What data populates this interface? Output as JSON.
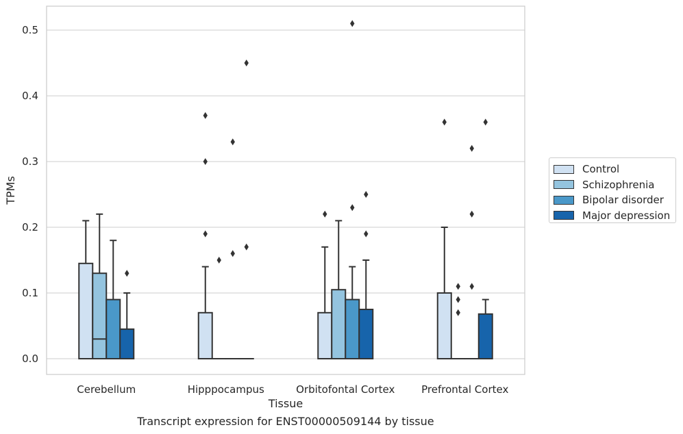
{
  "chart_data": {
    "type": "box",
    "caption": "Transcript expression for ENST00000509144 by tissue",
    "xlabel": "Tissue",
    "ylabel": "TPMs",
    "ylim": [
      -0.025,
      0.54
    ],
    "yticks": [
      0.0,
      0.1,
      0.2,
      0.3,
      0.4,
      0.5
    ],
    "ytick_labels": [
      "0.0",
      "0.1",
      "0.2",
      "0.3",
      "0.4",
      "0.5"
    ],
    "categories": [
      "Cerebellum",
      "Hipppocampus",
      "Orbitofontal Cortex",
      "Prefrontal Cortex"
    ],
    "grid": "horizontal",
    "legend_position": "right",
    "series": [
      {
        "name": "Control",
        "color": "#d0e1f2",
        "boxes": [
          {
            "q1": 0.0,
            "median": 0.0,
            "q3": 0.145,
            "whisker_low": 0.0,
            "whisker_high": 0.21,
            "outliers": []
          },
          {
            "q1": 0.0,
            "median": 0.0,
            "q3": 0.07,
            "whisker_low": 0.0,
            "whisker_high": 0.14,
            "outliers": [
              0.19,
              0.3,
              0.37
            ]
          },
          {
            "q1": 0.0,
            "median": 0.0,
            "q3": 0.07,
            "whisker_low": 0.0,
            "whisker_high": 0.17,
            "outliers": [
              0.22
            ]
          },
          {
            "q1": 0.0,
            "median": 0.0,
            "q3": 0.1,
            "whisker_low": 0.0,
            "whisker_high": 0.2,
            "outliers": [
              0.36
            ]
          }
        ]
      },
      {
        "name": "Schizophrenia",
        "color": "#94c4df",
        "boxes": [
          {
            "q1": 0.0,
            "median": 0.03,
            "q3": 0.13,
            "whisker_low": 0.0,
            "whisker_high": 0.22,
            "outliers": []
          },
          {
            "q1": 0.0,
            "median": 0.0,
            "q3": 0.0,
            "whisker_low": 0.0,
            "whisker_high": 0.0,
            "outliers": [
              0.15
            ]
          },
          {
            "q1": 0.0,
            "median": 0.0,
            "q3": 0.105,
            "whisker_low": 0.0,
            "whisker_high": 0.21,
            "outliers": []
          },
          {
            "q1": 0.0,
            "median": 0.0,
            "q3": 0.0,
            "whisker_low": 0.0,
            "whisker_high": 0.0,
            "outliers": [
              0.07,
              0.09,
              0.11
            ]
          }
        ]
      },
      {
        "name": "Bipolar disorder",
        "color": "#4a98c9",
        "boxes": [
          {
            "q1": 0.0,
            "median": 0.0,
            "q3": 0.09,
            "whisker_low": 0.0,
            "whisker_high": 0.18,
            "outliers": []
          },
          {
            "q1": 0.0,
            "median": 0.0,
            "q3": 0.0,
            "whisker_low": 0.0,
            "whisker_high": 0.0,
            "outliers": [
              0.16,
              0.33
            ]
          },
          {
            "q1": 0.0,
            "median": 0.0,
            "q3": 0.09,
            "whisker_low": 0.0,
            "whisker_high": 0.14,
            "outliers": [
              0.23,
              0.51
            ]
          },
          {
            "q1": 0.0,
            "median": 0.0,
            "q3": 0.0,
            "whisker_low": 0.0,
            "whisker_high": 0.0,
            "outliers": [
              0.11,
              0.22,
              0.32
            ]
          }
        ]
      },
      {
        "name": "Major depression",
        "color": "#1764ab",
        "boxes": [
          {
            "q1": 0.0,
            "median": 0.0,
            "q3": 0.045,
            "whisker_low": 0.0,
            "whisker_high": 0.1,
            "outliers": [
              0.13
            ]
          },
          {
            "q1": 0.0,
            "median": 0.0,
            "q3": 0.0,
            "whisker_low": 0.0,
            "whisker_high": 0.0,
            "outliers": [
              0.17,
              0.45
            ]
          },
          {
            "q1": 0.0,
            "median": 0.0,
            "q3": 0.075,
            "whisker_low": 0.0,
            "whisker_high": 0.15,
            "outliers": [
              0.19,
              0.25
            ]
          },
          {
            "q1": 0.0,
            "median": 0.0,
            "q3": 0.068,
            "whisker_low": 0.0,
            "whisker_high": 0.09,
            "outliers": [
              0.36
            ]
          }
        ]
      }
    ]
  }
}
